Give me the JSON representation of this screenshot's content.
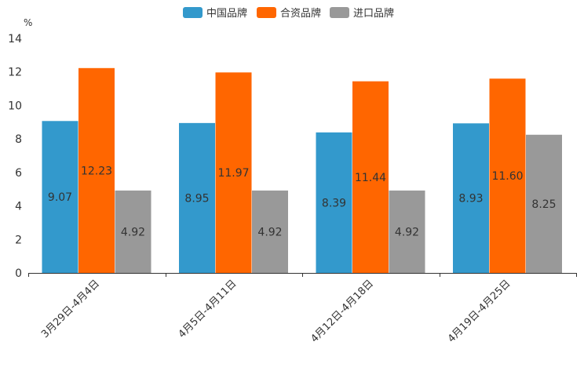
{
  "chart_data": {
    "type": "bar",
    "title": "",
    "ylabel": "%",
    "xlabel": "",
    "ylim": [
      0,
      14
    ],
    "yticks": [
      0,
      2,
      4,
      6,
      8,
      10,
      12,
      14
    ],
    "categories": [
      "3月29日-4月4日",
      "4月5日-4月11日",
      "4月12日-4月18日",
      "4月19日-4月25日"
    ],
    "series": [
      {
        "name": "中国品牌",
        "color": "#3399cc",
        "values": [
          9.07,
          8.95,
          8.39,
          8.93
        ],
        "labels": [
          "9.07",
          "8.95",
          "8.39",
          "8.93"
        ]
      },
      {
        "name": "合资品牌",
        "color": "#ff6600",
        "values": [
          12.23,
          11.97,
          11.44,
          11.6
        ],
        "labels": [
          "12.23",
          "11.97",
          "11.44",
          "11.60"
        ]
      },
      {
        "name": "进口品牌",
        "color": "#999999",
        "values": [
          4.92,
          4.92,
          4.92,
          8.25
        ],
        "labels": [
          "4.92",
          "4.92",
          "4.92",
          "8.25"
        ]
      }
    ],
    "legend_position": "top-center",
    "grid": false
  }
}
